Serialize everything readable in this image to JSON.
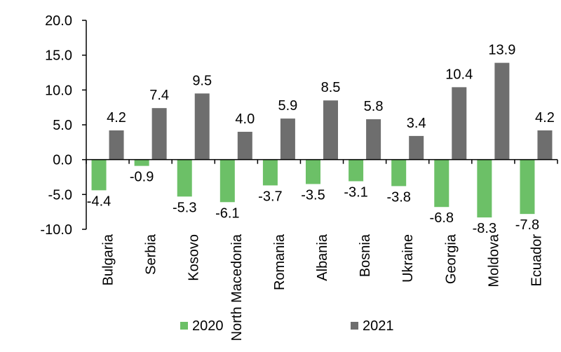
{
  "chart_data": {
    "type": "bar",
    "categories": [
      "Bulgaria",
      "Serbia",
      "Kosovo",
      "North Macedonia",
      "Romania",
      "Albania",
      "Bosnia",
      "Ukraine",
      "Georgia",
      "Moldova",
      "Ecuador"
    ],
    "series": [
      {
        "name": "2020",
        "color": "#6cc067",
        "values": [
          -4.4,
          -0.9,
          -5.3,
          -6.1,
          -3.7,
          -3.5,
          -3.1,
          -3.8,
          -6.8,
          -8.3,
          -7.8
        ],
        "labels": [
          "-4.4",
          "-0.9",
          "-5.3",
          "-6.1",
          "-3.7",
          "-3.5",
          "-3.1",
          "-3.8",
          "-6.8",
          "-8.3",
          "-7.8"
        ]
      },
      {
        "name": "2021",
        "color": "#6e6e6e",
        "values": [
          4.2,
          7.4,
          9.5,
          4.0,
          5.9,
          8.5,
          5.8,
          3.4,
          10.4,
          13.9,
          4.2
        ],
        "labels": [
          "4.2",
          "7.4",
          "9.5",
          "4.0",
          "5.9",
          "8.5",
          "5.8",
          "3.4",
          "10.4",
          "13.9",
          "4.2"
        ]
      }
    ],
    "ylim": [
      -10,
      20
    ],
    "yticks": [
      20,
      15,
      10,
      5,
      0,
      -5,
      -10
    ],
    "ytick_labels": [
      "20.0",
      "15.0",
      "10.0",
      "5.0",
      "0.0",
      "-5.0",
      "-10.0"
    ],
    "legend": {
      "placement": "bottom"
    },
    "grid": false
  }
}
